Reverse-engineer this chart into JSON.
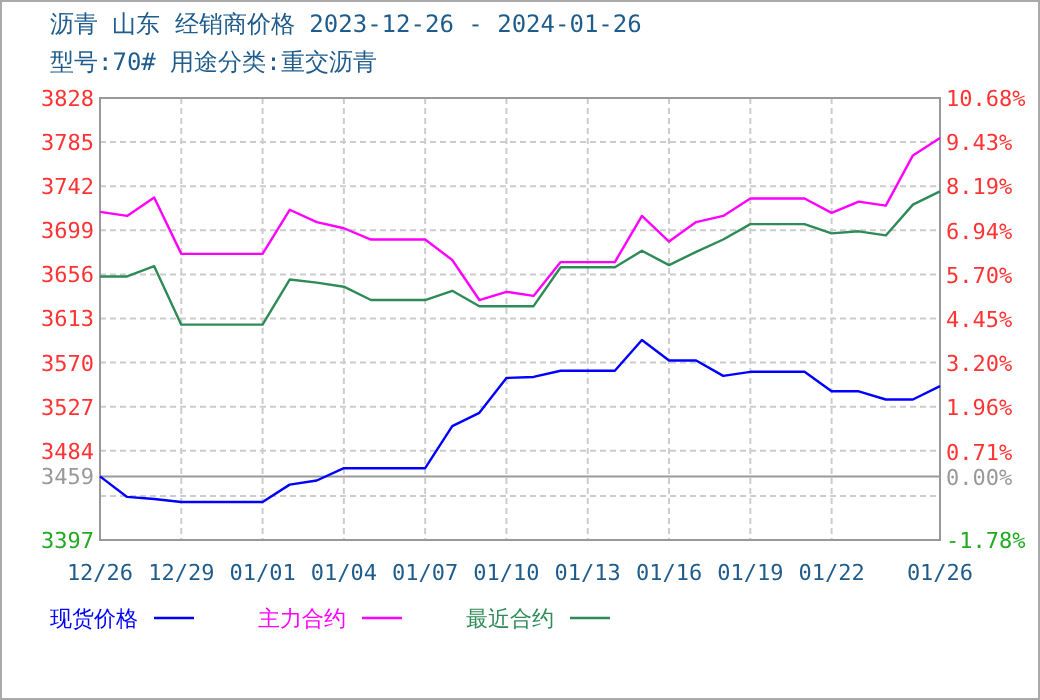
{
  "chart_data": {
    "type": "line",
    "title": "沥青  山东 经销商价格 2023-12-26 - 2024-01-26",
    "subtitle": "型号:70# 用途分类:重交沥青",
    "categories": [
      "12/26",
      null,
      null,
      "12/29",
      null,
      null,
      "01/01",
      null,
      null,
      "01/04",
      null,
      null,
      "01/07",
      null,
      null,
      "01/10",
      null,
      null,
      "01/13",
      null,
      null,
      "01/16",
      null,
      null,
      "01/19",
      null,
      null,
      "01/22",
      null,
      null,
      null,
      "01/26"
    ],
    "series": [
      {
        "name": "现货价格",
        "color": "#0000ff",
        "values": [
          3459,
          3439,
          3437,
          3434,
          3434,
          3434,
          3434,
          3451,
          3455,
          3467,
          3467,
          3467,
          3467,
          3508,
          3521,
          3555,
          3556,
          3562,
          3562,
          3562,
          3592,
          3572,
          3572,
          3557,
          3561,
          3561,
          3561,
          3542,
          3542,
          3534,
          3534,
          3547
        ]
      },
      {
        "name": "主力合约",
        "color": "#ff00ff",
        "values": [
          3717,
          3713,
          3731,
          3676,
          3676,
          3676,
          3676,
          3719,
          3707,
          3701,
          3690,
          3690,
          3690,
          3670,
          3631,
          3639,
          3635,
          3668,
          3668,
          3668,
          3713,
          3688,
          3707,
          3713,
          3730,
          3730,
          3730,
          3716,
          3727,
          3723,
          3772,
          3789
        ]
      },
      {
        "name": "最近合约",
        "color": "#2e8b57",
        "values": [
          3654,
          3654,
          3664,
          3607,
          3607,
          3607,
          3607,
          3651,
          3648,
          3644,
          3631,
          3631,
          3631,
          3640,
          3625,
          3625,
          3625,
          3663,
          3663,
          3663,
          3679,
          3665,
          3678,
          3690,
          3705,
          3705,
          3705,
          3696,
          3698,
          3694,
          3724,
          3737
        ]
      }
    ],
    "ylim": [
      3397,
      3828
    ],
    "yticks": [
      3397,
      {
        "value": 3440,
        "label": null
      },
      3484,
      3527,
      3570,
      3613,
      3656,
      3699,
      3742,
      3785,
      3828
    ],
    "y2lim": [
      -1.78,
      10.68
    ],
    "y2ticks": [
      {
        "value": -1.78,
        "label": "-1.78%"
      },
      {
        "value": 0,
        "label": "0.00%"
      },
      {
        "value": 0.71,
        "label": "0.71%"
      },
      {
        "value": 1.96,
        "label": "1.96%"
      },
      {
        "value": 3.2,
        "label": "3.20%"
      },
      {
        "value": 4.45,
        "label": "4.45%"
      },
      {
        "value": 5.7,
        "label": "5.70%"
      },
      {
        "value": 6.94,
        "label": "6.94%"
      },
      {
        "value": 8.19,
        "label": "8.19%"
      },
      {
        "value": 9.43,
        "label": "9.43%"
      },
      {
        "value": 10.68,
        "label": "10.68%"
      }
    ],
    "ref_lines": [
      {
        "axis": "y",
        "value": 3459,
        "label": "3459",
        "color": "#999999"
      }
    ],
    "grid": true,
    "legend": "bottom",
    "marker": "none",
    "line_style": "solid"
  }
}
